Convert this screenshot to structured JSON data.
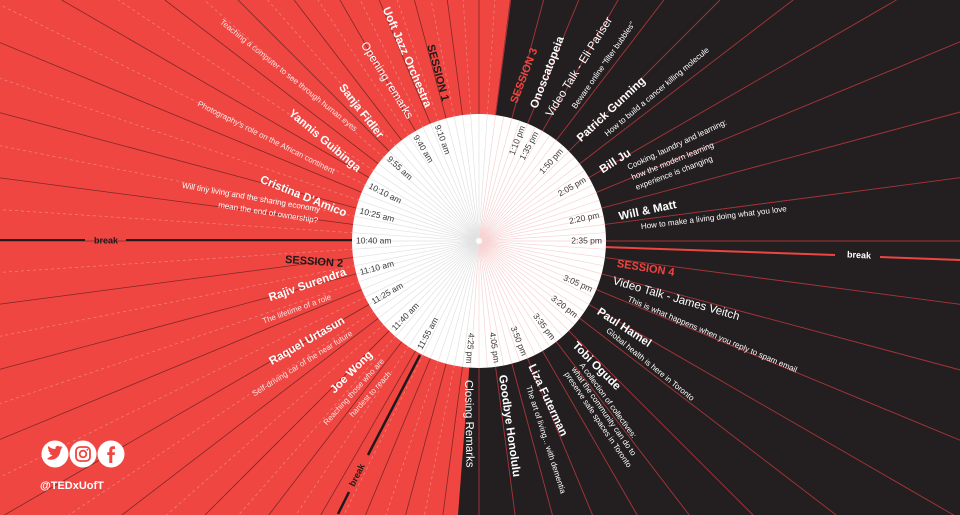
{
  "colors": {
    "red": "#ef4641",
    "dark": "#231f20",
    "session_red": "#ee4540",
    "circle": "#ffffff"
  },
  "times": [
    "9:10 am",
    "9:40 am",
    "9:55 am",
    "10:10 am",
    "10:25 am",
    "10:40 am",
    "11:10 am",
    "11:25 am",
    "11:40 am",
    "11:55 am",
    "1:10 pm",
    "1:35 pm",
    "1:50 pm",
    "2:05 pm",
    "2:20 pm",
    "2:35 pm",
    "3:05 pm",
    "3:20 pm",
    "3:35 pm",
    "3:50 pm",
    "4:05 pm",
    "4:25 pm"
  ],
  "sessions": [
    "SESSION 1",
    "SESSION 2",
    "SESSION 3",
    "SESSION 4"
  ],
  "break_label": "break",
  "talks": {
    "jazz": {
      "title": "Uoft Jazz Orchestra"
    },
    "opening": {
      "title": "Opening remarks"
    },
    "sanja": {
      "title": "Sanja Fidler",
      "subtitle": "Teaching a computer to see through human eyes"
    },
    "yannis": {
      "title": "Yannis Guibinga",
      "subtitle": "Photography's role on the African continent"
    },
    "cristina": {
      "title": "Cristina D'Amico",
      "subtitle": [
        "Will tiny living and the sharing economy",
        "mean the end of ownership?"
      ]
    },
    "rajiv": {
      "title": "Rajiv Surendra",
      "subtitle": "The lifetime of a role"
    },
    "raquel": {
      "title": "Raquel Urtasun",
      "subtitle": "Self-driving car of the near future"
    },
    "joe": {
      "title": "Joe Wong",
      "subtitle": [
        "Reaching those who are",
        "hardest to reach"
      ]
    },
    "onoscatopeia": {
      "title": "Onoscatopeia"
    },
    "eli": {
      "title": "Video Talk - Eli Pariser",
      "subtitle": "Beware online \"filter bubbles\""
    },
    "patrick": {
      "title": "Patrick Gunning",
      "subtitle": "How to build a cancer killing molecule"
    },
    "bill": {
      "title": "Bill Ju",
      "subtitle": [
        "Cooking, laundry and learning:",
        "how the modern learning",
        "experience is changing"
      ]
    },
    "willmatt": {
      "title": "Will & Matt",
      "subtitle": "How to make a living doing what you love"
    },
    "james": {
      "title": "Video Talk - James Veitch",
      "subtitle": "This is what happens when you reply to spam email"
    },
    "paul": {
      "title": "Paul Hamel",
      "subtitle": "Global health is here in Toronto"
    },
    "tobi": {
      "title": "Tobi Ogude",
      "subtitle": [
        "A collection of collectives:",
        "what the community can do to",
        "preserve safe spaces in Toronto"
      ]
    },
    "liza": {
      "title": "Liza Futerman",
      "subtitle": "The art of living... with dementia"
    },
    "goodbye": {
      "title": "Goodbye Honolulu"
    },
    "closing": {
      "title": "Closing Remarks"
    }
  },
  "social": {
    "icons": [
      "twitter-icon",
      "instagram-icon",
      "facebook-icon"
    ],
    "handle": "@TEDxUofT"
  }
}
